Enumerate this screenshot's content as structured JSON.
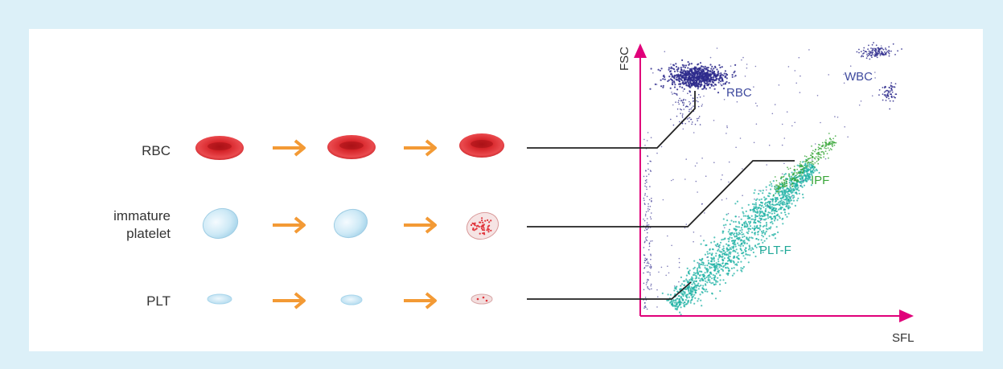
{
  "rows": {
    "rbc": {
      "label": "RBC"
    },
    "immature": {
      "label_line1": "immature",
      "label_line2": "platelet"
    },
    "plt": {
      "label": "PLT"
    }
  },
  "plot": {
    "x_label": "SFL",
    "y_label": "FSC",
    "populations": {
      "rbc": "RBC",
      "wbc": "WBC",
      "ipf": "IPF",
      "pltf": "PLT-F"
    }
  },
  "colors": {
    "frame": "#dcf0f8",
    "axis": "#e0007a",
    "arrow": "#f39a35",
    "rbc_cell": "#d7262b",
    "immature_cell": "#bfe3f2",
    "rbc_dots": "#2d2a8c",
    "pltf_dots": "#1fb2a4",
    "ipf_dots": "#3aa63a",
    "rbc_text": "#3f4a9e",
    "ipf_text": "#3aa63a",
    "pltf_text": "#1fa898"
  }
}
